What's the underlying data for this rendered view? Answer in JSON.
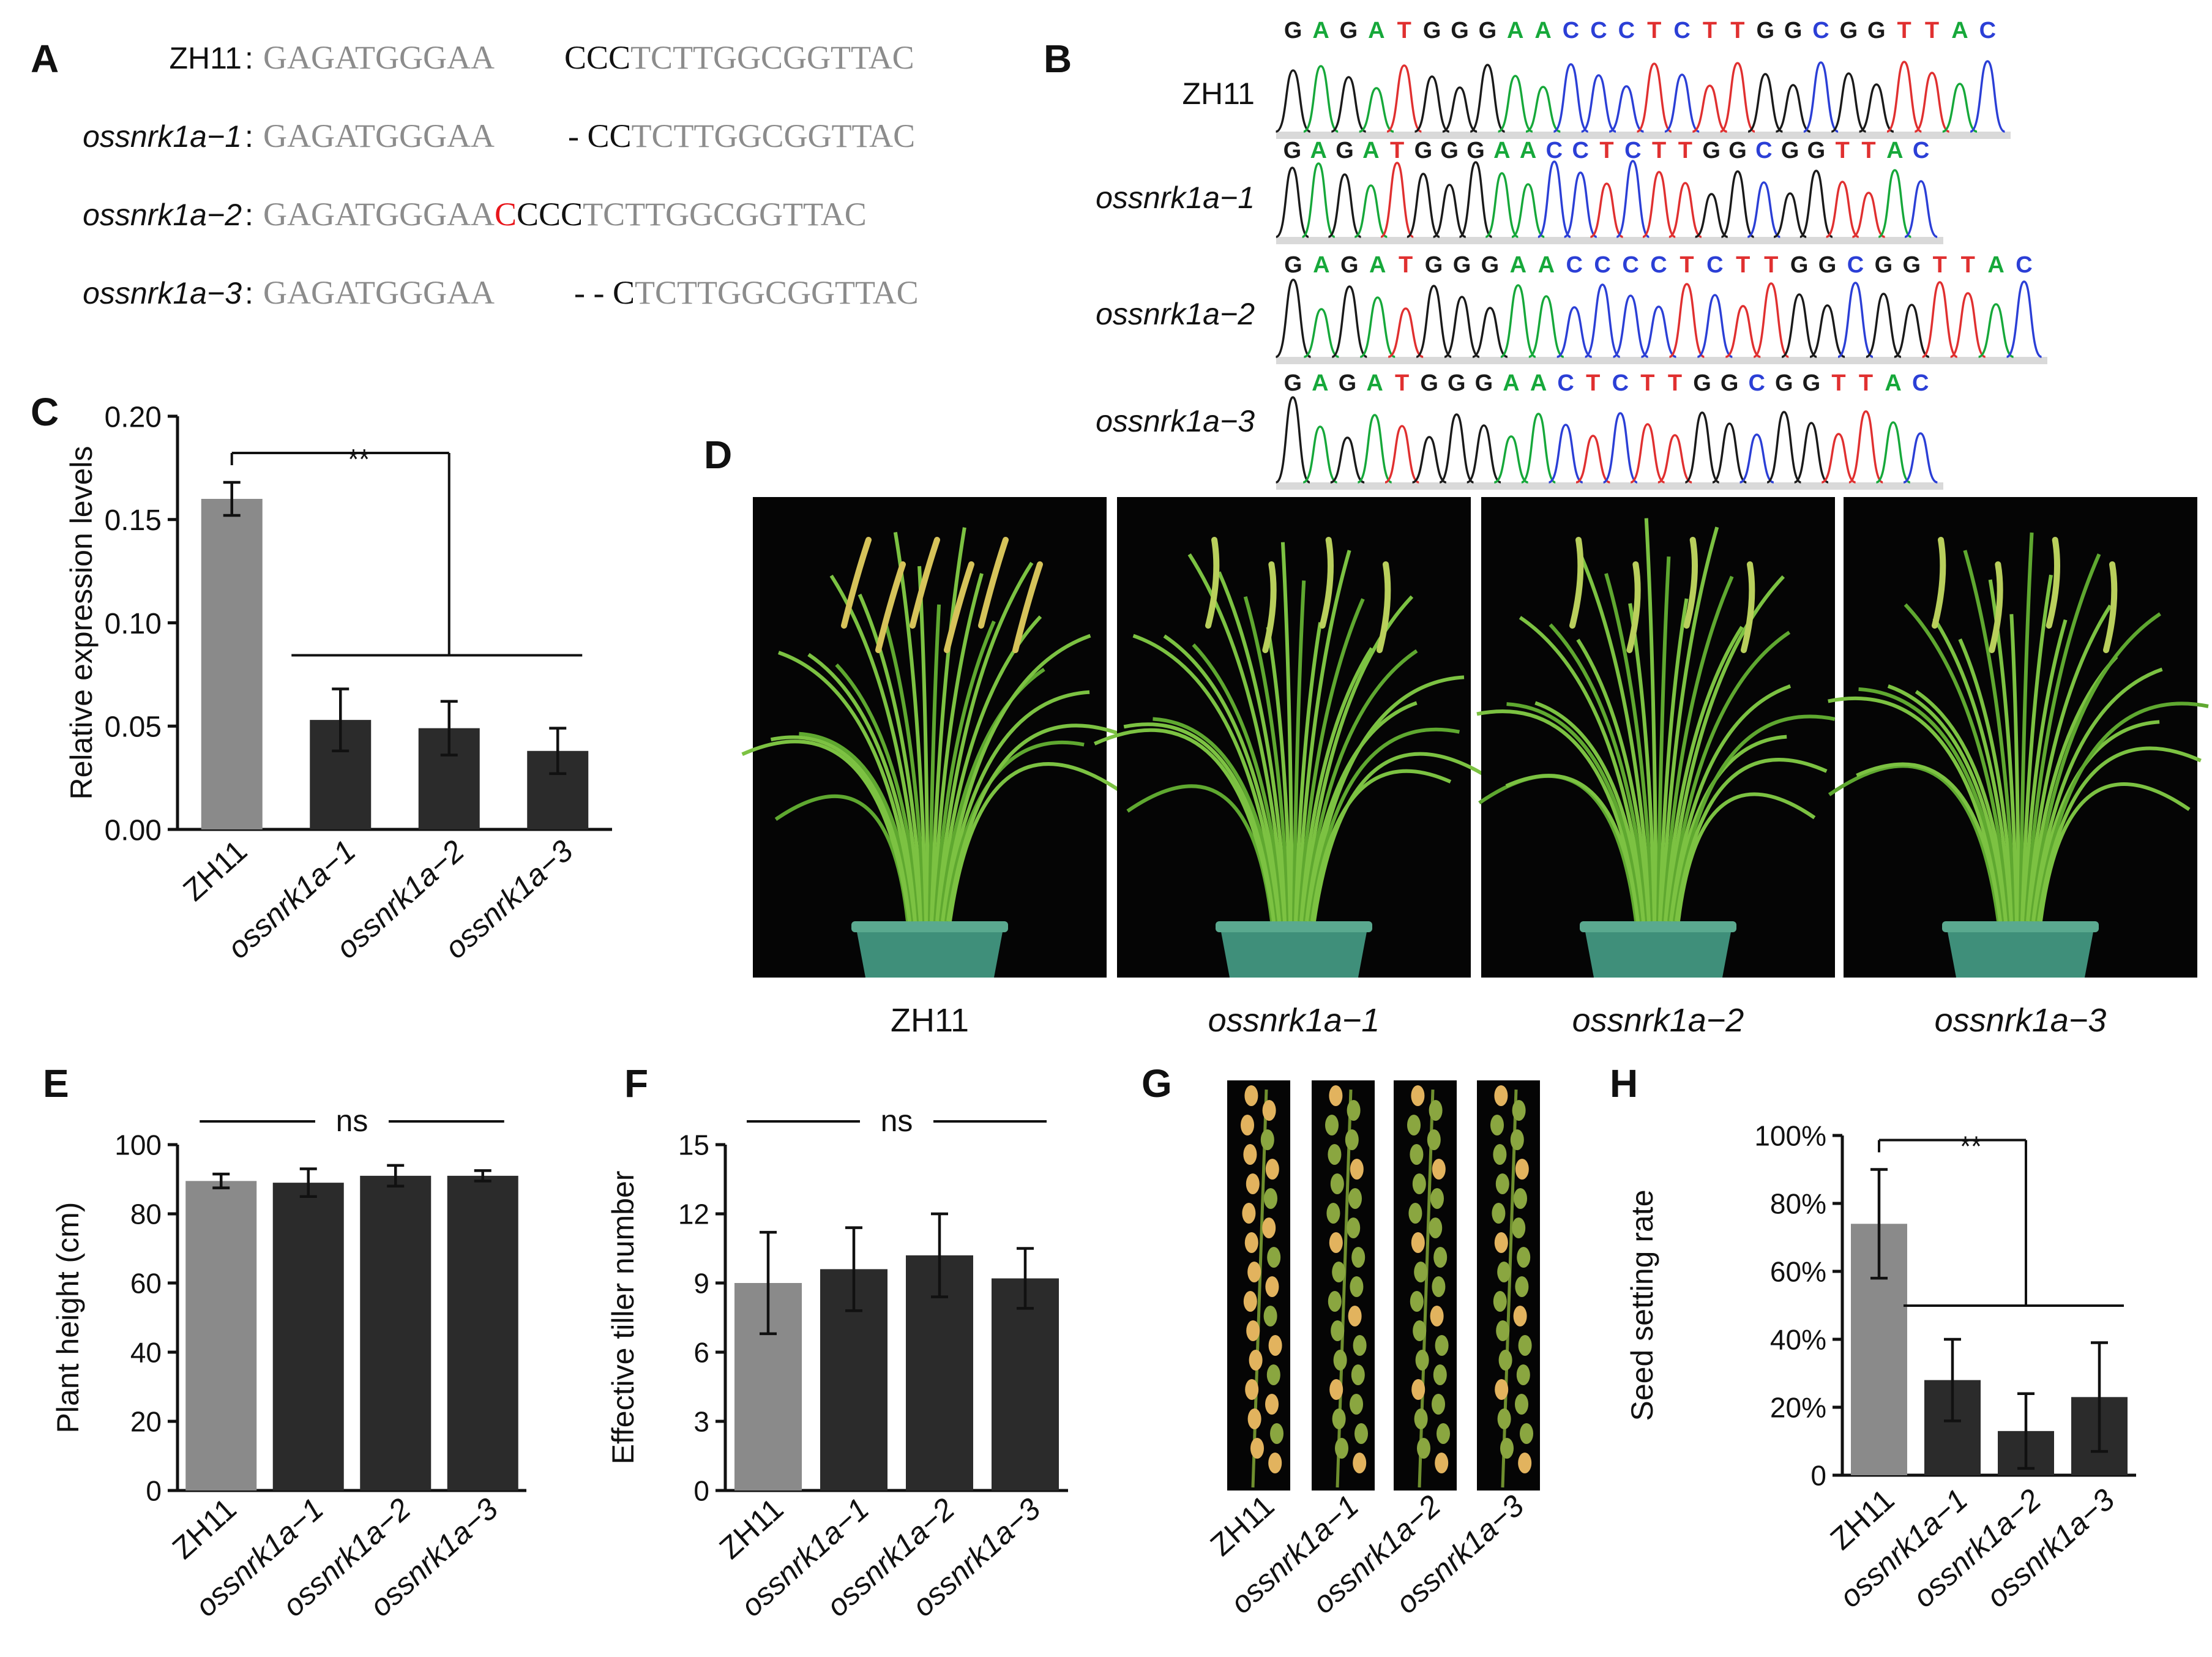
{
  "panels": {
    "A": "A",
    "B": "B",
    "C": "C",
    "D": "D",
    "E": "E",
    "F": "F",
    "G": "G",
    "H": "H"
  },
  "genotypes": [
    "ZH11",
    "ossnrk1a−1",
    "ossnrk1a−2",
    "ossnrk1a−3"
  ],
  "panel_a": {
    "rows": [
      {
        "label": "ZH11",
        "sep": ":",
        "left": "GAGATGGGAA",
        "mid": "",
        "mid_color": "",
        "core": "CCC",
        "right": "TCTTGGCGGTTAC"
      },
      {
        "label": "ossnrk1a−1",
        "sep": ":",
        "left": "GAGATGGGAA",
        "mid": "",
        "mid_color": "",
        "core": "- CC",
        "right": "TCTTGGCGGTTAC"
      },
      {
        "label": "ossnrk1a−2",
        "sep": ":",
        "left": "GAGATGGGAA",
        "mid": "C",
        "mid_color": "#e8161b",
        "core": "CCC",
        "right": "TCTTGGCGGTTAC"
      },
      {
        "label": "ossnrk1a−3",
        "sep": ":",
        "left": "GAGATGGGAA",
        "mid": "",
        "mid_color": "",
        "core": "- - C",
        "right": "TCTTGGCGGTTAC"
      }
    ]
  },
  "panel_b": {
    "traces": [
      {
        "label": "ZH11",
        "seq": "GAGATGGGAACCCTCTTGGCGGTTAC"
      },
      {
        "label": "ossnrk1a−1",
        "seq": "GAGATGGGAACCTCTTGGCGGTTAC"
      },
      {
        "label": "ossnrk1a−2",
        "seq": "GAGATGGGAACCCCTCTTGGCGGTTAC"
      },
      {
        "label": "ossnrk1a−3",
        "seq": "GAGATGGGAACTCTTGGCGGTTAC"
      }
    ],
    "base_colors": {
      "A": "#16a83a",
      "C": "#2b3fd6",
      "G": "#1a1a1a",
      "T": "#e03030"
    }
  },
  "panel_d": {
    "captions": [
      "ZH11",
      "ossnrk1a−1",
      "ossnrk1a−2",
      "ossnrk1a−3"
    ]
  },
  "panel_g": {
    "captions": [
      "ZH11",
      "ossnrk1a−1",
      "ossnrk1a−2",
      "ossnrk1a−3"
    ]
  },
  "colors": {
    "control": "#8a8a8a",
    "mutant": "#2b2b2b"
  },
  "chart_data": [
    {
      "panel": "C",
      "type": "bar",
      "categories": [
        "ZH11",
        "ossnrk1a−1",
        "ossnrk1a−2",
        "ossnrk1a−3"
      ],
      "values": [
        0.16,
        0.053,
        0.049,
        0.038
      ],
      "errors": [
        0.008,
        0.015,
        0.013,
        0.011
      ],
      "ylabel": "Relative expression levels",
      "ylim": [
        0,
        0.2
      ],
      "yticks": [
        "0.00",
        "0.05",
        "0.10",
        "0.15",
        "0.20"
      ],
      "yticks_values": [
        0,
        0.05,
        0.1,
        0.15,
        0.2
      ],
      "significance": "**"
    },
    {
      "panel": "E",
      "type": "bar",
      "categories": [
        "ZH11",
        "ossnrk1a−1",
        "ossnrk1a−2",
        "ossnrk1a−3"
      ],
      "values": [
        89.5,
        89,
        91,
        91
      ],
      "errors": [
        2,
        4,
        3,
        1.5
      ],
      "ylabel": "Plant height (cm)",
      "ylim": [
        0,
        100
      ],
      "yticks": [
        "0",
        "20",
        "40",
        "60",
        "80",
        "100"
      ],
      "yticks_values": [
        0,
        20,
        40,
        60,
        80,
        100
      ],
      "significance": "ns"
    },
    {
      "panel": "F",
      "type": "bar",
      "categories": [
        "ZH11",
        "ossnrk1a−1",
        "ossnrk1a−2",
        "ossnrk1a−3"
      ],
      "values": [
        9,
        9.6,
        10.2,
        9.2
      ],
      "errors": [
        2.2,
        1.8,
        1.8,
        1.3
      ],
      "ylabel": "Effective tiller number",
      "ylim": [
        0,
        15
      ],
      "yticks": [
        "0",
        "3",
        "6",
        "9",
        "12",
        "15"
      ],
      "yticks_values": [
        0,
        3,
        6,
        9,
        12,
        15
      ],
      "significance": "ns"
    },
    {
      "panel": "H",
      "type": "bar",
      "categories": [
        "ZH11",
        "ossnrk1a−1",
        "ossnrk1a−2",
        "ossnrk1a−3"
      ],
      "values": [
        74,
        28,
        13,
        23
      ],
      "errors": [
        16,
        12,
        11,
        16
      ],
      "ylabel": "Seed setting rate",
      "ylim": [
        0,
        100
      ],
      "yticks": [
        "0",
        "20%",
        "40%",
        "60%",
        "80%",
        "100%"
      ],
      "yticks_values": [
        0,
        20,
        40,
        60,
        80,
        100
      ],
      "significance": "**"
    }
  ]
}
